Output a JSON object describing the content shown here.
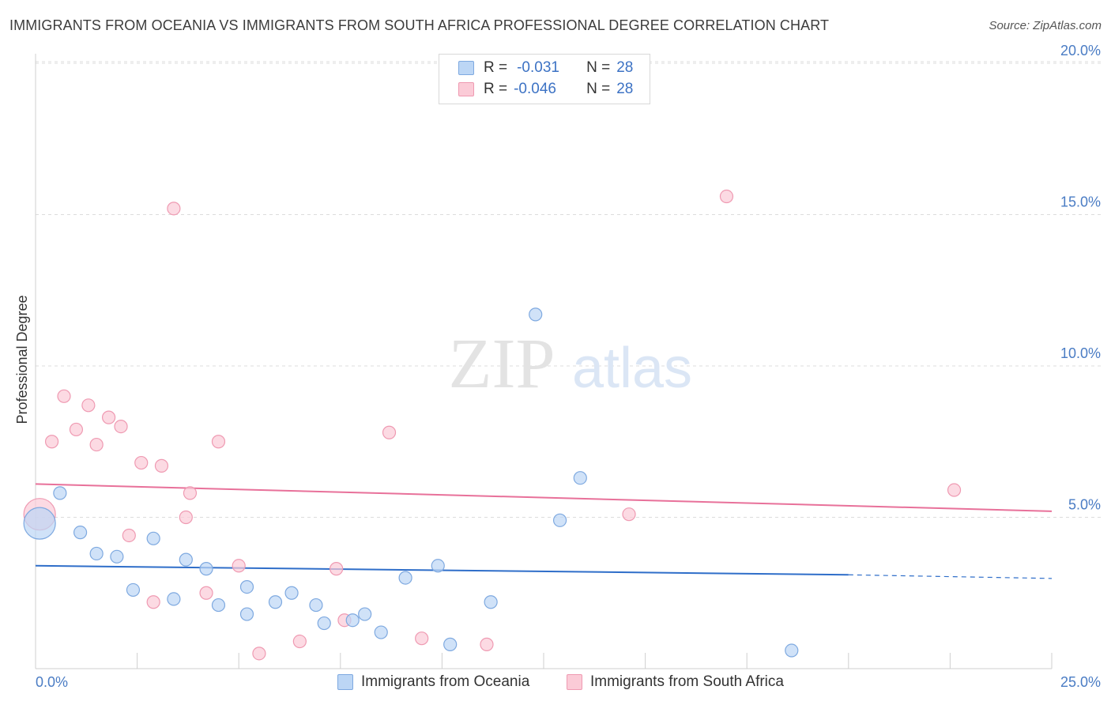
{
  "title": "IMMIGRANTS FROM OCEANIA VS IMMIGRANTS FROM SOUTH AFRICA PROFESSIONAL DEGREE CORRELATION CHART",
  "source": "Source: ZipAtlas.com",
  "watermark": {
    "zip": "ZIP",
    "atlas": "atlas"
  },
  "legend": {
    "rows": [
      {
        "r_label": "R =",
        "r_value": "-0.031",
        "n_label": "N =",
        "n_value": "28"
      },
      {
        "r_label": "R =",
        "r_value": "-0.046",
        "n_label": "N =",
        "n_value": "28"
      }
    ]
  },
  "colors": {
    "oceania_fill": "#bcd6f5",
    "oceania_stroke": "#7ea9e0",
    "oceania_line": "#2f6ec9",
    "safrica_fill": "#fbcbd7",
    "safrica_stroke": "#ef9ab2",
    "safrica_line": "#e8719a",
    "grid": "#dcdcdc",
    "axis_label": "#4a7cc4"
  },
  "chart_data": {
    "type": "scatter",
    "title": "IMMIGRANTS FROM OCEANIA VS IMMIGRANTS FROM SOUTH AFRICA PROFESSIONAL DEGREE CORRELATION CHART",
    "xlabel": "",
    "ylabel": "Professional Degree",
    "xlim": [
      0,
      25
    ],
    "ylim": [
      0,
      20.5
    ],
    "x_tick_labels": [
      "0.0%",
      "25.0%"
    ],
    "y_ticks": [
      5,
      10,
      15,
      20
    ],
    "y_tick_labels": [
      "5.0%",
      "10.0%",
      "15.0%",
      "20.0%"
    ],
    "series": [
      {
        "name": "Immigrants from Oceania",
        "r": -0.031,
        "n": 28,
        "trend": {
          "x_start": 0,
          "y_start": 3.4,
          "x_end": 20,
          "y_end": 3.1,
          "dashed_to_x": 25,
          "dashed_to_y": 2.98
        },
        "points": [
          {
            "x": 0.1,
            "y": 4.8,
            "big": true
          },
          {
            "x": 0.6,
            "y": 5.8
          },
          {
            "x": 1.1,
            "y": 4.5
          },
          {
            "x": 1.5,
            "y": 3.8
          },
          {
            "x": 2.0,
            "y": 3.7
          },
          {
            "x": 2.4,
            "y": 2.6
          },
          {
            "x": 2.9,
            "y": 4.3
          },
          {
            "x": 3.4,
            "y": 2.3
          },
          {
            "x": 3.7,
            "y": 3.6
          },
          {
            "x": 4.2,
            "y": 3.3
          },
          {
            "x": 4.5,
            "y": 2.1
          },
          {
            "x": 5.2,
            "y": 2.7
          },
          {
            "x": 5.2,
            "y": 1.8
          },
          {
            "x": 5.9,
            "y": 2.2
          },
          {
            "x": 6.3,
            "y": 2.5
          },
          {
            "x": 6.9,
            "y": 2.1
          },
          {
            "x": 7.1,
            "y": 1.5
          },
          {
            "x": 7.8,
            "y": 1.6
          },
          {
            "x": 8.1,
            "y": 1.8
          },
          {
            "x": 8.5,
            "y": 1.2
          },
          {
            "x": 9.1,
            "y": 3.0
          },
          {
            "x": 9.9,
            "y": 3.4
          },
          {
            "x": 10.2,
            "y": 0.8
          },
          {
            "x": 11.2,
            "y": 2.2
          },
          {
            "x": 12.3,
            "y": 11.7
          },
          {
            "x": 12.9,
            "y": 4.9
          },
          {
            "x": 13.4,
            "y": 6.3
          },
          {
            "x": 18.6,
            "y": 0.6
          }
        ]
      },
      {
        "name": "Immigrants from South Africa",
        "r": -0.046,
        "n": 28,
        "trend": {
          "x_start": 0,
          "y_start": 6.1,
          "x_end": 25,
          "y_end": 5.2
        },
        "points": [
          {
            "x": 0.1,
            "y": 5.1,
            "big": true
          },
          {
            "x": 0.4,
            "y": 7.5
          },
          {
            "x": 0.7,
            "y": 9.0
          },
          {
            "x": 1.0,
            "y": 7.9
          },
          {
            "x": 1.3,
            "y": 8.7
          },
          {
            "x": 1.5,
            "y": 7.4
          },
          {
            "x": 1.8,
            "y": 8.3
          },
          {
            "x": 2.1,
            "y": 8.0
          },
          {
            "x": 2.3,
            "y": 4.4
          },
          {
            "x": 2.6,
            "y": 6.8
          },
          {
            "x": 2.9,
            "y": 2.2
          },
          {
            "x": 3.1,
            "y": 6.7
          },
          {
            "x": 3.4,
            "y": 15.2
          },
          {
            "x": 3.7,
            "y": 5.0
          },
          {
            "x": 3.8,
            "y": 5.8
          },
          {
            "x": 4.2,
            "y": 2.5
          },
          {
            "x": 4.5,
            "y": 7.5
          },
          {
            "x": 5.0,
            "y": 3.4
          },
          {
            "x": 5.5,
            "y": 0.5
          },
          {
            "x": 6.5,
            "y": 0.9
          },
          {
            "x": 7.4,
            "y": 3.3
          },
          {
            "x": 7.6,
            "y": 1.6
          },
          {
            "x": 8.7,
            "y": 7.8
          },
          {
            "x": 9.5,
            "y": 1.0
          },
          {
            "x": 11.1,
            "y": 0.8
          },
          {
            "x": 14.6,
            "y": 5.1
          },
          {
            "x": 17.0,
            "y": 15.6
          },
          {
            "x": 22.6,
            "y": 5.9
          }
        ]
      }
    ]
  }
}
